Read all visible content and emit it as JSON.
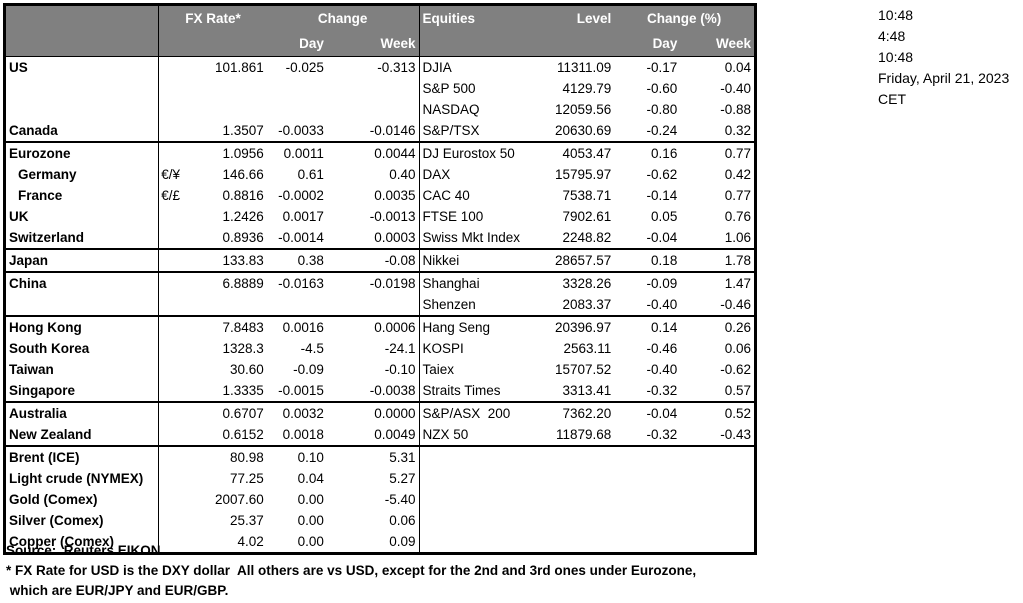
{
  "colors": {
    "header_bg": "#808080",
    "header_text": "#FFFFFF",
    "border": "#000000",
    "text": "#000000",
    "background": "#FFFFFF"
  },
  "table_header": {
    "fx_rate": "FX Rate*",
    "fx_change": "Change",
    "fx_day": "Day",
    "fx_week": "Week",
    "equities": "Equities",
    "level": "Level",
    "eq_change": "Change (%)",
    "eq_day": "Day",
    "eq_week": "Week"
  },
  "rows": [
    {
      "fx": {
        "label": "US",
        "pair": "",
        "rate": "101.861",
        "day": "-0.025",
        "week": "-0.313"
      },
      "eq": {
        "name": "DJIA",
        "level": "11311.09",
        "day": "-0.17",
        "week": "0.04"
      },
      "sep": false
    },
    {
      "fx": {},
      "eq": {
        "name": "S&P 500",
        "level": "4129.79",
        "day": "-0.60",
        "week": "-0.40"
      },
      "sep": false
    },
    {
      "fx": {},
      "eq": {
        "name": "NASDAQ",
        "level": "12059.56",
        "day": "-0.80",
        "week": "-0.88"
      },
      "sep": false
    },
    {
      "fx": {
        "label": "Canada",
        "pair": "",
        "rate": "1.3507",
        "day": "-0.0033",
        "week": "-0.0146"
      },
      "eq": {
        "name": "S&P/TSX",
        "level": "20630.69",
        "day": "-0.24",
        "week": "0.32"
      },
      "sep": true
    },
    {
      "fx": {
        "label": "Eurozone",
        "pair": "",
        "rate": "1.0956",
        "day": "0.0011",
        "week": "0.0044"
      },
      "eq": {
        "name": "DJ Eurostox 50",
        "level": "4053.47",
        "day": "0.16",
        "week": "0.77"
      },
      "sep": false
    },
    {
      "fx": {
        "label": "Germany",
        "indent": true,
        "pair": "€/¥",
        "rate": "146.66",
        "day": "0.61",
        "week": "0.40"
      },
      "eq": {
        "name": "DAX",
        "level": "15795.97",
        "day": "-0.62",
        "week": "0.42"
      },
      "sep": false
    },
    {
      "fx": {
        "label": "France",
        "indent": true,
        "pair": "€/£",
        "rate": "0.8816",
        "day": "-0.0002",
        "week": "0.0035"
      },
      "eq": {
        "name": "CAC 40",
        "level": "7538.71",
        "day": "-0.14",
        "week": "0.77"
      },
      "sep": false
    },
    {
      "fx": {
        "label": "UK",
        "pair": "",
        "rate": "1.2426",
        "day": "0.0017",
        "week": "-0.0013"
      },
      "eq": {
        "name": "FTSE 100",
        "level": "7902.61",
        "day": "0.05",
        "week": "0.76"
      },
      "sep": false
    },
    {
      "fx": {
        "label": "Switzerland",
        "pair": "",
        "rate": "0.8936",
        "day": "-0.0014",
        "week": "0.0003"
      },
      "eq": {
        "name": "Swiss Mkt Index",
        "level": "2248.82",
        "day": "-0.04",
        "week": "1.06"
      },
      "sep": true
    },
    {
      "fx": {
        "label": "Japan",
        "pair": "",
        "rate": "133.83",
        "day": "0.38",
        "week": "-0.08"
      },
      "eq": {
        "name": "Nikkei",
        "level": "28657.57",
        "day": "0.18",
        "week": "1.78"
      },
      "sep": true
    },
    {
      "fx": {
        "label": "China",
        "pair": "",
        "rate": "6.8889",
        "day": "-0.0163",
        "week": "-0.0198"
      },
      "eq": {
        "name": "Shanghai",
        "level": "3328.26",
        "day": "-0.09",
        "week": "1.47"
      },
      "sep": false
    },
    {
      "fx": {},
      "eq": {
        "name": "Shenzen",
        "level": "2083.37",
        "day": "-0.40",
        "week": "-0.46"
      },
      "sep": true
    },
    {
      "fx": {
        "label": "Hong Kong",
        "pair": "",
        "rate": "7.8483",
        "day": "0.0016",
        "week": "0.0006"
      },
      "eq": {
        "name": "Hang Seng",
        "level": "20396.97",
        "day": "0.14",
        "week": "0.26"
      },
      "sep": false
    },
    {
      "fx": {
        "label": "South Korea",
        "pair": "",
        "rate": "1328.3",
        "day": "-4.5",
        "week": "-24.1"
      },
      "eq": {
        "name": "KOSPI",
        "level": "2563.11",
        "day": "-0.46",
        "week": "0.06"
      },
      "sep": false
    },
    {
      "fx": {
        "label": "Taiwan",
        "pair": "",
        "rate": "30.60",
        "day": "-0.09",
        "week": "-0.10"
      },
      "eq": {
        "name": "Taiex",
        "level": "15707.52",
        "day": "-0.40",
        "week": "-0.62"
      },
      "sep": false
    },
    {
      "fx": {
        "label": "Singapore",
        "pair": "",
        "rate": "1.3335",
        "day": "-0.0015",
        "week": "-0.0038"
      },
      "eq": {
        "name": "Straits Times",
        "level": "3313.41",
        "day": "-0.32",
        "week": "0.57"
      },
      "sep": true
    },
    {
      "fx": {
        "label": "Australia",
        "pair": "",
        "rate": "0.6707",
        "day": "0.0032",
        "week": "0.0000"
      },
      "eq": {
        "name": "S&P/ASX  200",
        "level": "7362.20",
        "day": "-0.04",
        "week": "0.52"
      },
      "sep": false
    },
    {
      "fx": {
        "label": "New Zealand",
        "pair": "",
        "rate": "0.6152",
        "day": "0.0018",
        "week": "0.0049"
      },
      "eq": {
        "name": "NZX 50",
        "level": "11879.68",
        "day": "-0.32",
        "week": "-0.43"
      },
      "sep": true
    },
    {
      "fx": {
        "label": "Brent (ICE)",
        "pair": "",
        "rate": "80.98",
        "day": "0.10",
        "week": "5.31"
      },
      "eq": {},
      "sep": false
    },
    {
      "fx": {
        "label": "Light crude (NYMEX)",
        "pair": "",
        "rate": "77.25",
        "day": "0.04",
        "week": "5.27"
      },
      "eq": {},
      "sep": false
    },
    {
      "fx": {
        "label": "Gold (Comex)",
        "pair": "",
        "rate": "2007.60",
        "day": "0.00",
        "week": "-5.40"
      },
      "eq": {},
      "sep": false
    },
    {
      "fx": {
        "label": "Silver (Comex)",
        "pair": "",
        "rate": "25.37",
        "day": "0.00",
        "week": "0.06"
      },
      "eq": {},
      "sep": false
    },
    {
      "fx": {
        "label": "Copper (Comex)",
        "pair": "",
        "rate": "4.02",
        "day": "0.00",
        "week": "0.09"
      },
      "eq": {},
      "sep": false
    }
  ],
  "sidebar": {
    "lines": [
      "10:48",
      "4:48",
      "10:48",
      "Friday, April 21, 2023",
      "CET"
    ]
  },
  "footer": {
    "source": "Source:  Reuters EIKON.",
    "note_line1": "* FX Rate for USD is the DXY dollar  All others are vs USD, except for the 2nd and 3rd ones under Eurozone,",
    "note_line2": " which are EUR/JPY and EUR/GBP."
  }
}
